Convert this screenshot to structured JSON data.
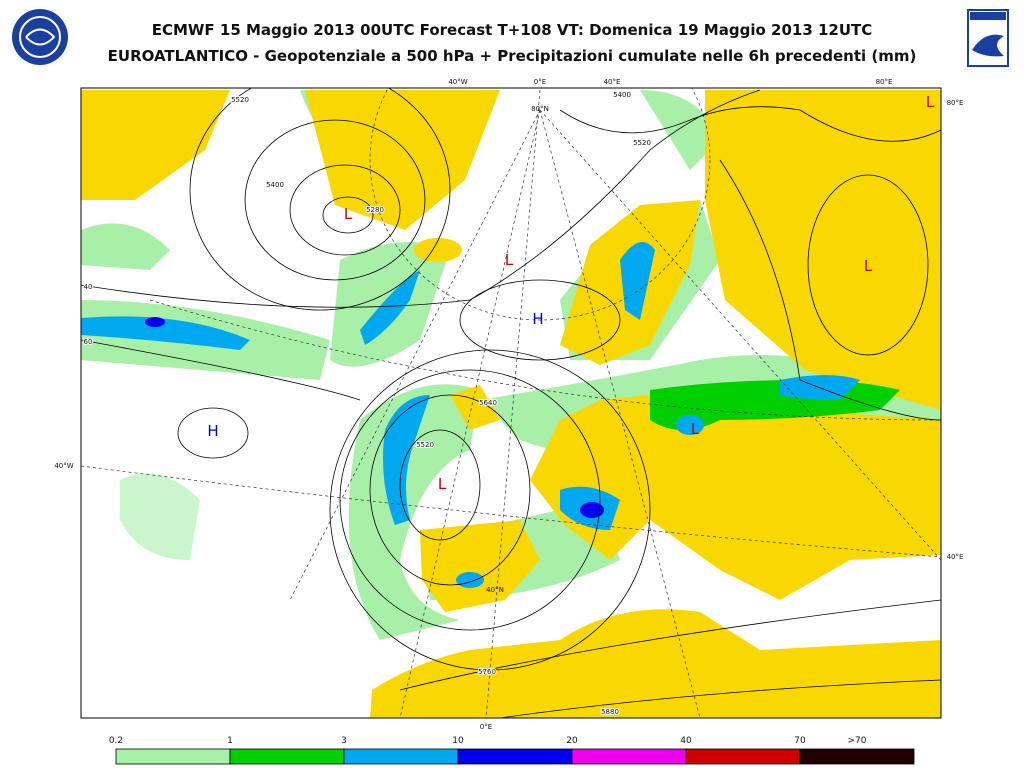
{
  "header": {
    "title": "ECMWF 15 Maggio 2013 00UTC Forecast T+108 VT: Domenica 19 Maggio 2013 12UTC",
    "subtitle": "EUROATLANTICO - Geopotenziale a 500 hPa + Precipitazioni cumulate nelle 6h precedenti (mm)"
  },
  "map": {
    "pressure_centers": [
      {
        "text": "L",
        "color": "#d00000"
      },
      {
        "text": "L",
        "color": "#d00000"
      },
      {
        "text": "L",
        "color": "#d00000"
      },
      {
        "text": "L",
        "color": "#d00000"
      },
      {
        "text": "L",
        "color": "#d00000"
      },
      {
        "text": "L",
        "color": "#d00000"
      },
      {
        "text": "H",
        "color": "#0000d0"
      },
      {
        "text": "H",
        "color": "#0000d0"
      }
    ],
    "coordinate_labels": [
      "40°W",
      "0°E",
      "40°E",
      "80°E",
      "80°N",
      "80°E",
      "40°W",
      "40°E",
      "40°N",
      "0°E"
    ],
    "contour_labels": [
      "5520",
      "5400",
      "5280",
      "5400",
      "5520",
      "40",
      "60",
      "5520",
      "5640",
      "5760",
      "5880"
    ]
  },
  "legend": {
    "labels": [
      "0.2",
      "1",
      "3",
      "10",
      "20",
      "40",
      "70",
      ">70"
    ],
    "colors": [
      "#a8f0a8",
      "#00d000",
      "#00a8f0",
      "#0000f0",
      "#f000f0",
      "#d00000",
      "#200000"
    ]
  }
}
